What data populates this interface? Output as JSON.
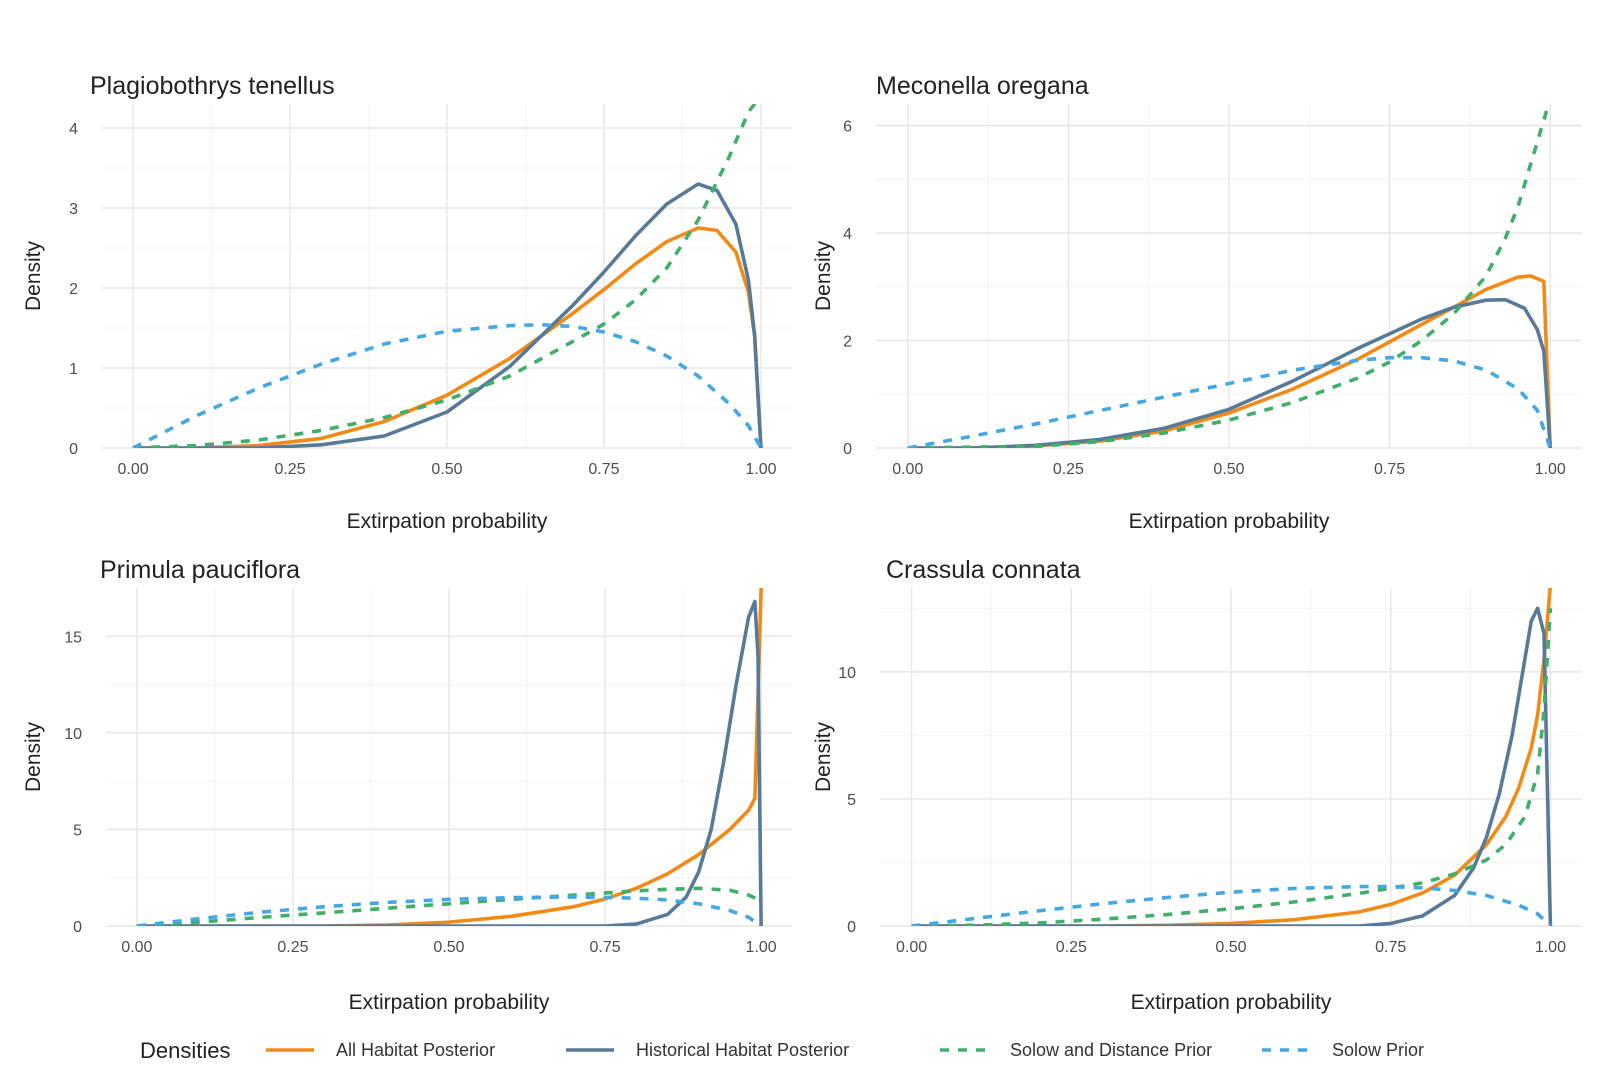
{
  "legend": {
    "title": "Densities",
    "entries": [
      {
        "label": "All Habitat Posterior",
        "color": "#F28B16",
        "dash": "solid"
      },
      {
        "label": "Historical Habitat Posterior",
        "color": "#587A99",
        "dash": "solid"
      },
      {
        "label": "Solow and Distance Prior",
        "color": "#41AE6B",
        "dash": "dashed"
      },
      {
        "label": "Solow Prior",
        "color": "#43A8E4",
        "dash": "dashed"
      }
    ]
  },
  "chart_data": [
    {
      "type": "line",
      "title": "Plagiobothrys tenellus",
      "xlabel": "Extirpation probability",
      "ylabel": "Density",
      "xlim": [
        0,
        1
      ],
      "ylim": [
        0,
        4.3
      ],
      "xticks": [
        "0.00",
        "0.25",
        "0.50",
        "0.75",
        "1.00"
      ],
      "yticks": [
        0,
        1,
        2,
        3,
        4
      ],
      "series": [
        {
          "name": "All Habitat Posterior",
          "x": [
            0,
            0.1,
            0.2,
            0.3,
            0.4,
            0.5,
            0.6,
            0.7,
            0.75,
            0.8,
            0.85,
            0.9,
            0.93,
            0.96,
            0.98,
            0.99,
            1.0
          ],
          "y": [
            0,
            0,
            0.03,
            0.12,
            0.33,
            0.66,
            1.12,
            1.68,
            1.98,
            2.3,
            2.58,
            2.75,
            2.72,
            2.45,
            1.95,
            1.4,
            0
          ]
        },
        {
          "name": "Historical Habitat Posterior",
          "x": [
            0,
            0.2,
            0.3,
            0.4,
            0.5,
            0.6,
            0.7,
            0.75,
            0.8,
            0.85,
            0.9,
            0.93,
            0.96,
            0.98,
            0.99,
            1.0
          ],
          "y": [
            0,
            0,
            0.04,
            0.15,
            0.45,
            1.02,
            1.78,
            2.2,
            2.65,
            3.05,
            3.3,
            3.22,
            2.8,
            2.1,
            1.4,
            0
          ]
        },
        {
          "name": "Solow and Distance Prior",
          "x": [
            0,
            0.1,
            0.2,
            0.3,
            0.4,
            0.5,
            0.6,
            0.7,
            0.75,
            0.8,
            0.85,
            0.9,
            0.95,
            0.98,
            1.0
          ],
          "y": [
            0,
            0.03,
            0.1,
            0.22,
            0.38,
            0.6,
            0.9,
            1.33,
            1.55,
            1.85,
            2.25,
            2.85,
            3.65,
            4.2,
            4.4
          ]
        },
        {
          "name": "Solow Prior",
          "x": [
            0,
            0.1,
            0.2,
            0.3,
            0.4,
            0.5,
            0.6,
            0.65,
            0.7,
            0.75,
            0.8,
            0.85,
            0.9,
            0.95,
            0.98,
            1.0
          ],
          "y": [
            0,
            0.4,
            0.75,
            1.05,
            1.3,
            1.46,
            1.53,
            1.54,
            1.52,
            1.45,
            1.33,
            1.15,
            0.9,
            0.55,
            0.28,
            0
          ]
        }
      ]
    },
    {
      "type": "line",
      "title": "Meconella oregana",
      "xlabel": "Extirpation probability",
      "ylabel": "Density",
      "xlim": [
        0,
        1
      ],
      "ylim": [
        0,
        6.4
      ],
      "xticks": [
        "0.00",
        "0.25",
        "0.50",
        "0.75",
        "1.00"
      ],
      "yticks": [
        0,
        2,
        4,
        6
      ],
      "series": [
        {
          "name": "All Habitat Posterior",
          "x": [
            0,
            0.1,
            0.2,
            0.3,
            0.4,
            0.5,
            0.6,
            0.7,
            0.8,
            0.85,
            0.9,
            0.95,
            0.97,
            0.99,
            1.0
          ],
          "y": [
            0,
            0,
            0.04,
            0.13,
            0.32,
            0.65,
            1.1,
            1.65,
            2.3,
            2.62,
            2.95,
            3.18,
            3.2,
            3.1,
            0
          ]
        },
        {
          "name": "Historical Habitat Posterior",
          "x": [
            0,
            0.1,
            0.2,
            0.3,
            0.4,
            0.5,
            0.6,
            0.7,
            0.8,
            0.85,
            0.9,
            0.93,
            0.96,
            0.98,
            0.99,
            1.0
          ],
          "y": [
            0,
            0,
            0.05,
            0.16,
            0.37,
            0.72,
            1.25,
            1.85,
            2.4,
            2.62,
            2.75,
            2.76,
            2.6,
            2.2,
            1.8,
            0
          ]
        },
        {
          "name": "Solow and Distance Prior",
          "x": [
            0,
            0.2,
            0.3,
            0.4,
            0.5,
            0.6,
            0.7,
            0.75,
            0.8,
            0.85,
            0.9,
            0.93,
            0.95,
            0.97,
            0.99,
            1.0
          ],
          "y": [
            0,
            0.03,
            0.12,
            0.28,
            0.52,
            0.85,
            1.3,
            1.6,
            2.0,
            2.5,
            3.2,
            3.9,
            4.5,
            5.3,
            6.1,
            6.5
          ]
        },
        {
          "name": "Solow Prior",
          "x": [
            0,
            0.1,
            0.2,
            0.3,
            0.4,
            0.5,
            0.6,
            0.7,
            0.75,
            0.8,
            0.85,
            0.9,
            0.95,
            0.98,
            1.0
          ],
          "y": [
            0,
            0.22,
            0.45,
            0.7,
            0.95,
            1.2,
            1.45,
            1.63,
            1.68,
            1.68,
            1.62,
            1.45,
            1.1,
            0.7,
            0
          ]
        }
      ]
    },
    {
      "type": "line",
      "title": "Primula pauciflora",
      "xlabel": "Extirpation probability",
      "ylabel": "Density",
      "xlim": [
        0,
        1
      ],
      "ylim": [
        0,
        17.5
      ],
      "xticks": [
        "0.00",
        "0.25",
        "0.50",
        "0.75",
        "1.00"
      ],
      "yticks": [
        0,
        5,
        10,
        15
      ],
      "series": [
        {
          "name": "All Habitat Posterior",
          "x": [
            0,
            0.3,
            0.4,
            0.5,
            0.6,
            0.7,
            0.75,
            0.8,
            0.85,
            0.9,
            0.95,
            0.98,
            0.99,
            0.995,
            1.0
          ],
          "y": [
            0,
            0,
            0.05,
            0.2,
            0.5,
            1.0,
            1.4,
            1.95,
            2.7,
            3.7,
            5.0,
            6.0,
            6.6,
            12,
            17.5
          ]
        },
        {
          "name": "Historical Habitat Posterior",
          "x": [
            0,
            0.75,
            0.8,
            0.85,
            0.88,
            0.9,
            0.92,
            0.94,
            0.96,
            0.98,
            0.99,
            0.995,
            1.0
          ],
          "y": [
            0,
            0,
            0.1,
            0.6,
            1.5,
            2.8,
            5.0,
            8.5,
            12.5,
            16.0,
            16.8,
            14.0,
            0
          ]
        },
        {
          "name": "Solow and Distance Prior",
          "x": [
            0,
            0.1,
            0.2,
            0.3,
            0.4,
            0.5,
            0.6,
            0.7,
            0.8,
            0.85,
            0.9,
            0.95,
            0.98,
            1.0
          ],
          "y": [
            0,
            0.2,
            0.45,
            0.68,
            0.92,
            1.15,
            1.38,
            1.6,
            1.82,
            1.9,
            1.95,
            1.85,
            1.6,
            1.3
          ]
        },
        {
          "name": "Solow Prior",
          "x": [
            0,
            0.1,
            0.2,
            0.3,
            0.4,
            0.5,
            0.6,
            0.7,
            0.75,
            0.8,
            0.85,
            0.9,
            0.95,
            0.98,
            1.0
          ],
          "y": [
            0,
            0.38,
            0.72,
            1.0,
            1.22,
            1.38,
            1.47,
            1.5,
            1.48,
            1.44,
            1.35,
            1.15,
            0.8,
            0.45,
            0
          ]
        }
      ]
    },
    {
      "type": "line",
      "title": "Crassula connata",
      "xlabel": "Extirpation probability",
      "ylabel": "Density",
      "xlim": [
        0,
        1
      ],
      "ylim": [
        0,
        13.3
      ],
      "xticks": [
        "0.00",
        "0.25",
        "0.50",
        "0.75",
        "1.00"
      ],
      "yticks": [
        0,
        5,
        10
      ],
      "series": [
        {
          "name": "All Habitat Posterior",
          "x": [
            0,
            0.3,
            0.4,
            0.5,
            0.6,
            0.7,
            0.75,
            0.8,
            0.85,
            0.9,
            0.93,
            0.95,
            0.97,
            0.98,
            0.99,
            1.0
          ],
          "y": [
            0,
            0,
            0.03,
            0.1,
            0.25,
            0.55,
            0.85,
            1.3,
            2.0,
            3.2,
            4.3,
            5.4,
            7.0,
            8.3,
            10.5,
            13.4
          ]
        },
        {
          "name": "Historical Habitat Posterior",
          "x": [
            0,
            0.7,
            0.75,
            0.8,
            0.85,
            0.88,
            0.9,
            0.92,
            0.94,
            0.96,
            0.97,
            0.98,
            0.99,
            1.0
          ],
          "y": [
            0,
            0,
            0.1,
            0.4,
            1.2,
            2.3,
            3.5,
            5.2,
            7.5,
            10.5,
            12.0,
            12.5,
            11.5,
            0
          ]
        },
        {
          "name": "Solow and Distance Prior",
          "x": [
            0,
            0.1,
            0.2,
            0.3,
            0.4,
            0.5,
            0.6,
            0.7,
            0.8,
            0.85,
            0.9,
            0.93,
            0.96,
            0.98,
            0.99,
            1.0
          ],
          "y": [
            0,
            0.03,
            0.12,
            0.27,
            0.45,
            0.68,
            0.95,
            1.28,
            1.7,
            2.05,
            2.6,
            3.2,
            4.3,
            6.0,
            8.5,
            12.5
          ]
        },
        {
          "name": "Solow Prior",
          "x": [
            0,
            0.1,
            0.2,
            0.3,
            0.4,
            0.5,
            0.6,
            0.7,
            0.75,
            0.8,
            0.85,
            0.9,
            0.95,
            0.98,
            1.0
          ],
          "y": [
            0,
            0.3,
            0.6,
            0.88,
            1.12,
            1.33,
            1.48,
            1.55,
            1.55,
            1.5,
            1.4,
            1.2,
            0.82,
            0.48,
            0
          ]
        }
      ]
    }
  ]
}
